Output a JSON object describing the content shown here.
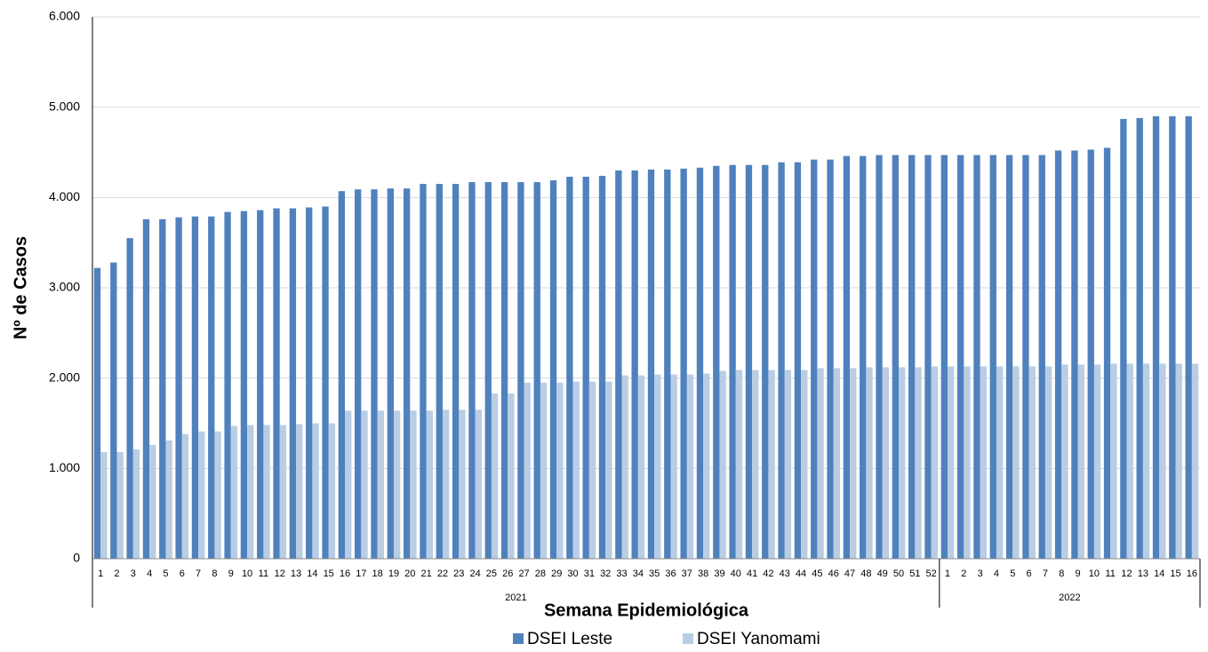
{
  "chart_data": {
    "type": "bar",
    "y_label": "Nº de Casos",
    "x_label": "Semana Epidemiológica",
    "groups": [
      {
        "label": "2021",
        "categories": [
          "1",
          "2",
          "3",
          "4",
          "5",
          "6",
          "7",
          "8",
          "9",
          "10",
          "11",
          "12",
          "13",
          "14",
          "15",
          "16",
          "17",
          "18",
          "19",
          "20",
          "21",
          "22",
          "23",
          "24",
          "25",
          "26",
          "27",
          "28",
          "29",
          "30",
          "31",
          "32",
          "33",
          "34",
          "35",
          "36",
          "37",
          "38",
          "39",
          "40",
          "41",
          "42",
          "43",
          "44",
          "45",
          "46",
          "47",
          "48",
          "49",
          "50",
          "51",
          "52"
        ]
      },
      {
        "label": "2022",
        "categories": [
          "1",
          "2",
          "3",
          "4",
          "5",
          "6",
          "7",
          "8",
          "9",
          "10",
          "11",
          "12",
          "13",
          "14",
          "15",
          "16"
        ]
      }
    ],
    "series": [
      {
        "name": "DSEI Leste",
        "color": "#4f81bd",
        "values": [
          3220,
          3280,
          3550,
          3760,
          3760,
          3780,
          3790,
          3790,
          3840,
          3850,
          3860,
          3880,
          3880,
          3890,
          3900,
          4070,
          4090,
          4090,
          4100,
          4100,
          4150,
          4150,
          4150,
          4170,
          4170,
          4170,
          4170,
          4170,
          4190,
          4230,
          4230,
          4240,
          4300,
          4300,
          4310,
          4310,
          4320,
          4330,
          4350,
          4360,
          4360,
          4360,
          4390,
          4390,
          4420,
          4420,
          4460,
          4460,
          4470,
          4470,
          4470,
          4470,
          4470,
          4470,
          4470,
          4470,
          4470,
          4470,
          4470,
          4520,
          4520,
          4530,
          4550,
          4870,
          4880,
          4900,
          4900,
          4900
        ]
      },
      {
        "name": "DSEI Yanomami",
        "color": "#b9cde5",
        "values": [
          1180,
          1180,
          1210,
          1260,
          1310,
          1380,
          1410,
          1410,
          1470,
          1480,
          1480,
          1480,
          1490,
          1500,
          1500,
          1640,
          1640,
          1640,
          1640,
          1640,
          1640,
          1650,
          1650,
          1650,
          1830,
          1830,
          1950,
          1950,
          1950,
          1960,
          1960,
          1960,
          2030,
          2030,
          2040,
          2040,
          2040,
          2050,
          2080,
          2090,
          2090,
          2090,
          2090,
          2090,
          2110,
          2110,
          2110,
          2120,
          2120,
          2120,
          2120,
          2130,
          2130,
          2130,
          2130,
          2130,
          2130,
          2130,
          2130,
          2150,
          2150,
          2150,
          2160,
          2160,
          2160,
          2160,
          2160,
          2160
        ]
      }
    ],
    "ylim": [
      0,
      6000
    ],
    "yticks": [
      0,
      {
        "value": 1000,
        "label": "1.000"
      },
      {
        "value": 2000,
        "label": "2.000"
      },
      {
        "value": 3000,
        "label": "3.000"
      },
      {
        "value": 4000,
        "label": "4.000"
      },
      {
        "value": 5000,
        "label": "5.000"
      },
      {
        "value": 6000,
        "label": "6.000"
      }
    ],
    "grid": true
  }
}
